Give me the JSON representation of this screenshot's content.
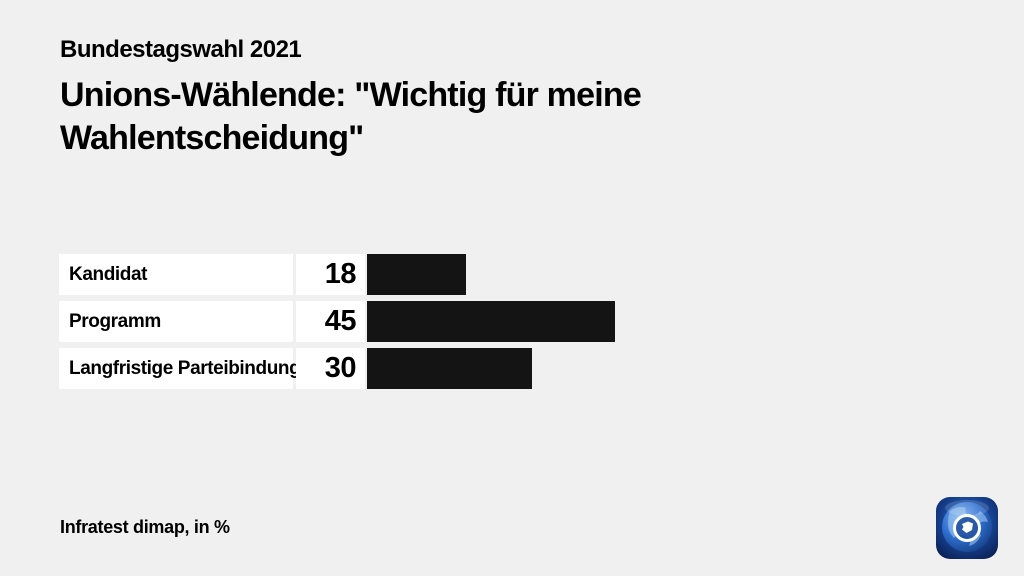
{
  "header": {
    "kicker": "Bundestagswahl 2021",
    "title": "Unions-Wählende: \"Wichtig für meine Wahlentscheidung\""
  },
  "footer": {
    "source": "Infratest dimap, in %"
  },
  "icons": {
    "brand_logo": "tagesschau-globe-icon"
  },
  "colors": {
    "background": "#f0f0f0",
    "bar": "#141414",
    "box": "#ffffff",
    "text": "#000000",
    "logo_dark_blue": "#0a1d4e",
    "logo_bright_blue": "#2f6fd0"
  },
  "chart_data": {
    "type": "bar",
    "orientation": "horizontal",
    "title": "Unions-Wählende: \"Wichtig für meine Wahlentscheidung\"",
    "kicker": "Bundestagswahl 2021",
    "source": "Infratest dimap, in %",
    "unit": "%",
    "categories": [
      "Kandidat",
      "Programm",
      "Langfristige Parteibindung"
    ],
    "values": [
      18,
      45,
      30
    ],
    "xlim": [
      0,
      100
    ],
    "value_labels_shown": true,
    "grid": false,
    "legend": false
  }
}
